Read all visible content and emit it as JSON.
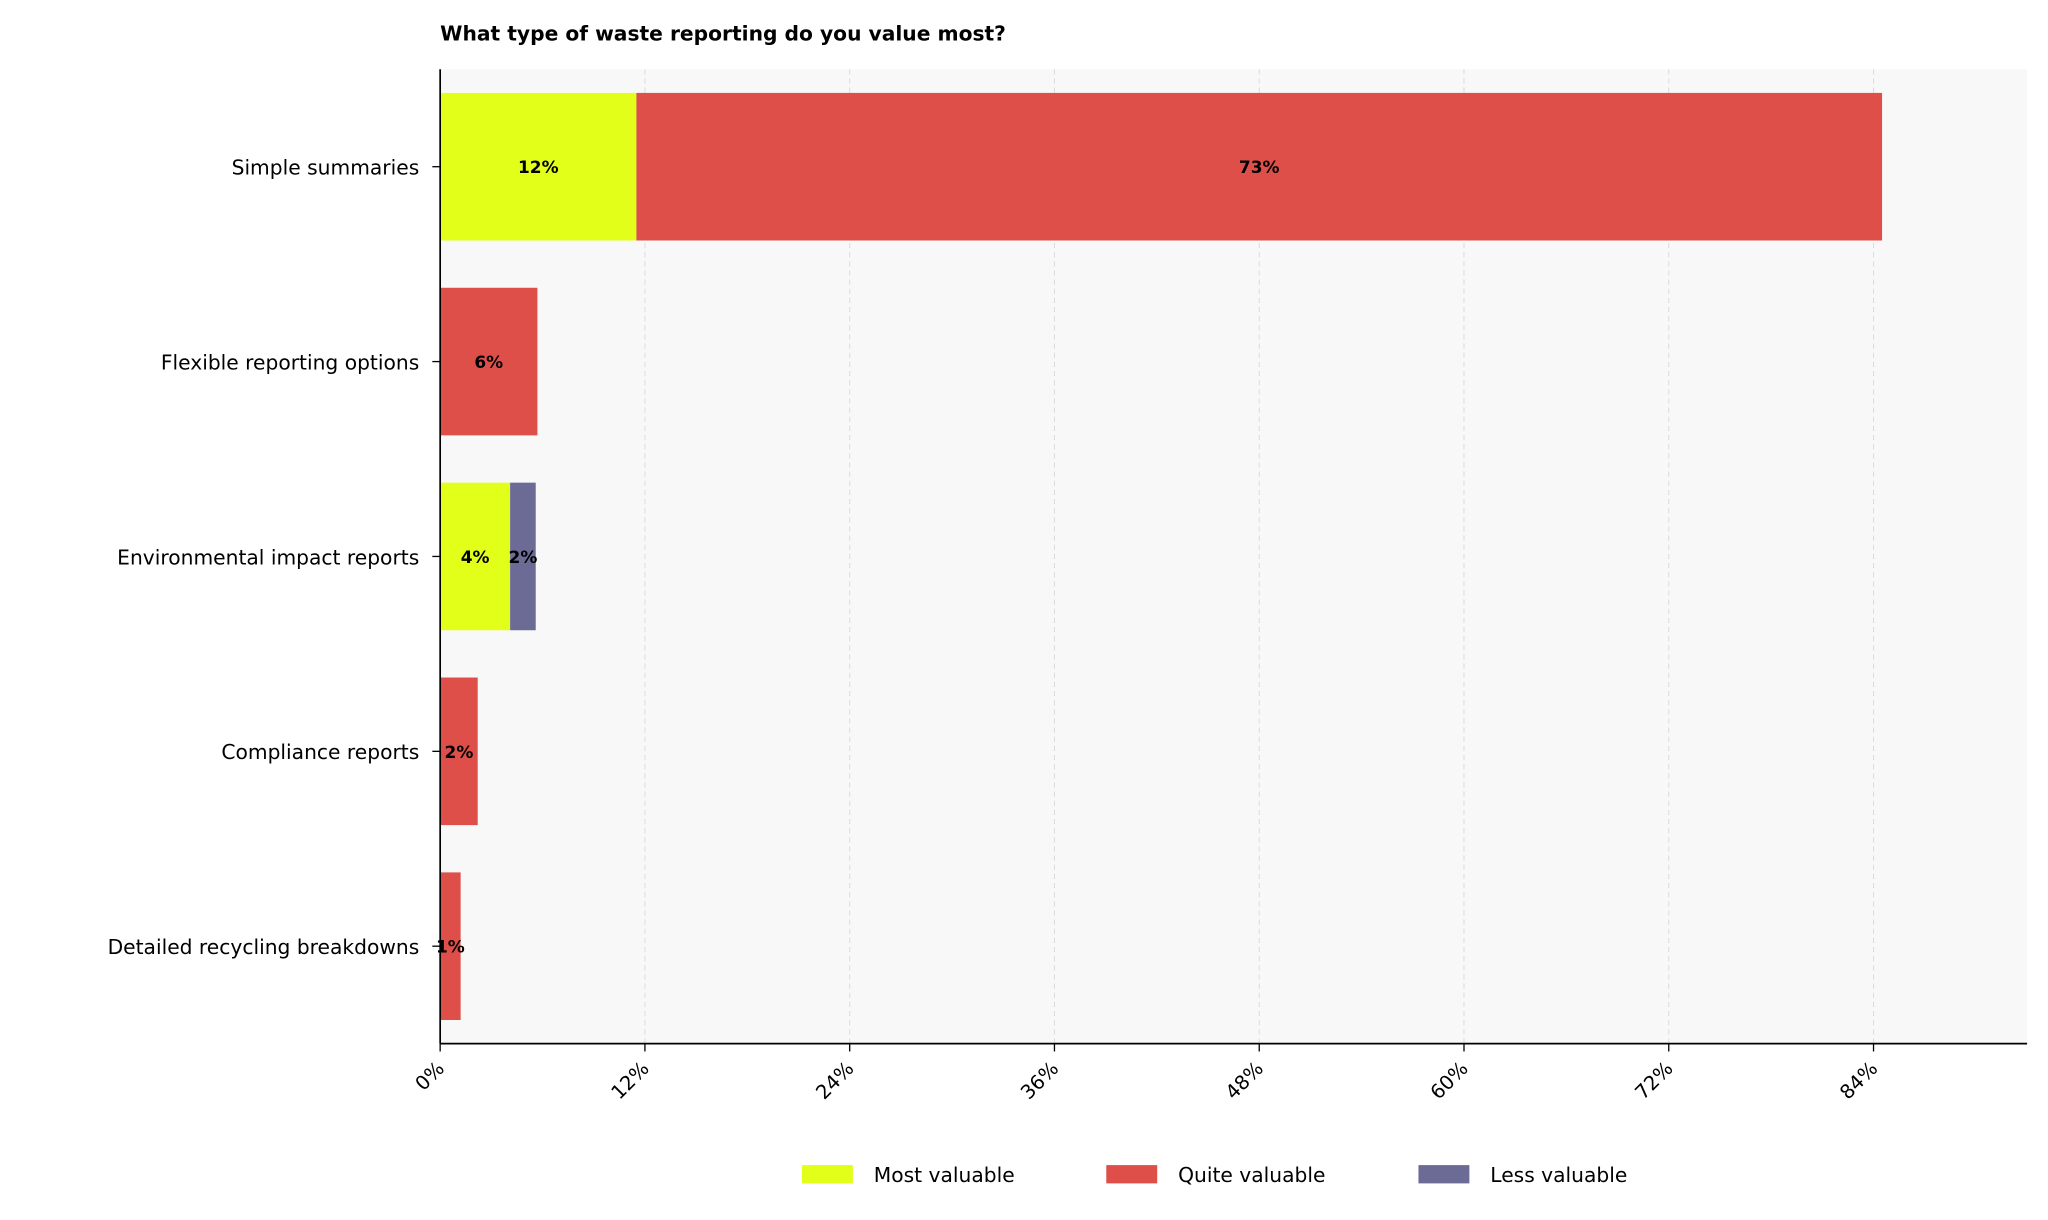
{
  "chart_data": {
    "type": "bar",
    "orientation": "horizontal",
    "stacked": true,
    "title": "What type of waste reporting do you value most?",
    "xlabel": "",
    "ylabel": "",
    "xlim": [
      0,
      93
    ],
    "x_ticks": [
      0,
      12,
      24,
      36,
      48,
      60,
      72,
      84
    ],
    "x_tick_labels": [
      "0%",
      "12%",
      "24%",
      "36%",
      "48%",
      "60%",
      "72%",
      "84%"
    ],
    "grid": "vertical dashed",
    "legend_position": "bottom-center",
    "categories": [
      "Simple summaries",
      "Flexible reporting options",
      "Environmental impact reports",
      "Compliance reports",
      "Detailed recycling breakdowns"
    ],
    "series": [
      {
        "name": "Most valuable",
        "color": "#e2ff1a",
        "values": [
          11.5,
          0,
          4.1,
          0,
          0
        ],
        "labels": [
          "12%",
          "",
          "4%",
          "",
          ""
        ]
      },
      {
        "name": "Quite valuable",
        "color": "#de4f4a",
        "values": [
          73.0,
          5.7,
          0,
          2.2,
          1.2
        ],
        "labels": [
          "73%",
          "6%",
          "",
          "2%",
          "1%"
        ]
      },
      {
        "name": "Less valuable",
        "color": "#6b6b96",
        "values": [
          0,
          0,
          1.5,
          0,
          0
        ],
        "labels": [
          "",
          "",
          "2%",
          "",
          ""
        ]
      }
    ]
  }
}
